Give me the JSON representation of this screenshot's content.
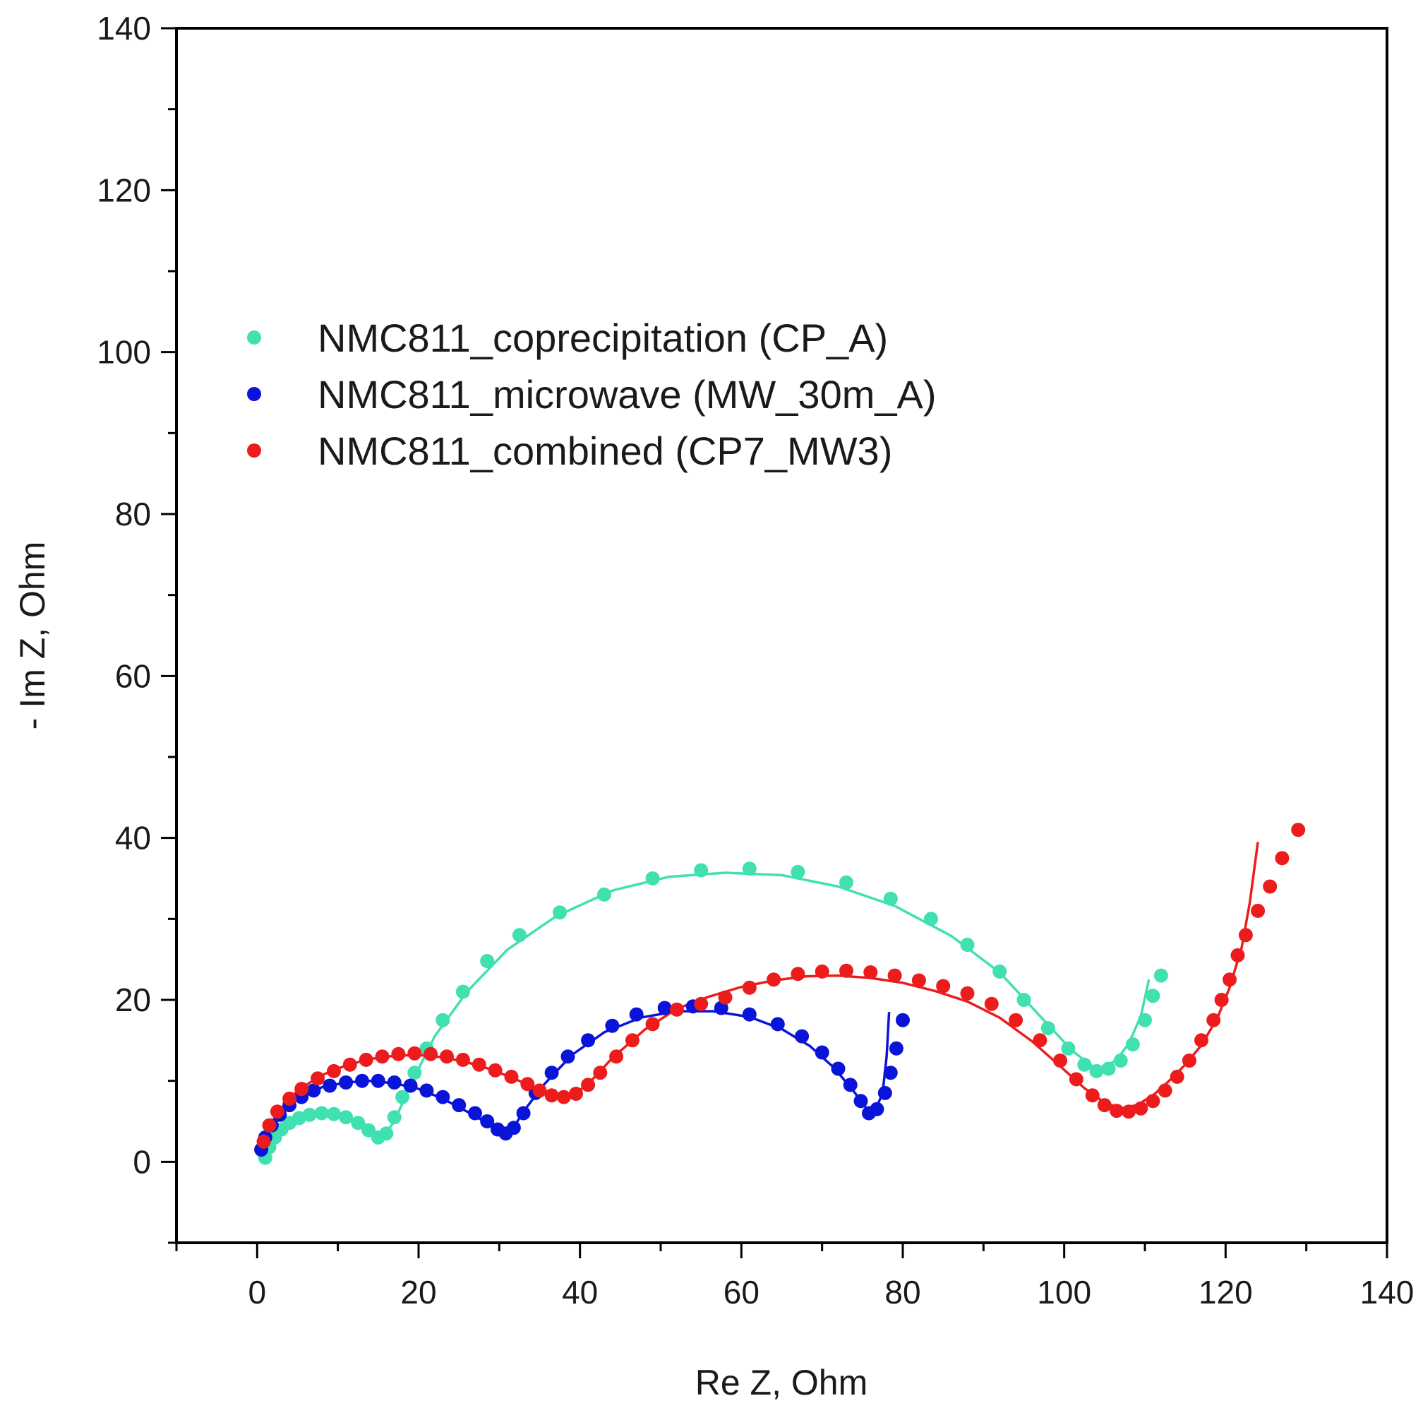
{
  "chart_data": {
    "type": "scatter",
    "title": "",
    "xlabel": "Re Z, Ohm",
    "ylabel": "- Im Z, Ohm",
    "xlim": [
      -10,
      140
    ],
    "ylim": [
      -10,
      140
    ],
    "xticks": [
      0,
      20,
      40,
      60,
      80,
      100,
      120,
      140
    ],
    "yticks": [
      0,
      20,
      40,
      60,
      80,
      100,
      120,
      140
    ],
    "legend_position": "upper-left",
    "series": [
      {
        "name": "NMC811_coprecipitation (CP_A)",
        "color": "#40e0b0",
        "marker": "circle",
        "points": [
          [
            1.0,
            0.5
          ],
          [
            1.5,
            1.8
          ],
          [
            2.2,
            3.0
          ],
          [
            3.0,
            4.0
          ],
          [
            4.0,
            4.8
          ],
          [
            5.2,
            5.4
          ],
          [
            6.5,
            5.8
          ],
          [
            8.0,
            6.0
          ],
          [
            9.5,
            5.9
          ],
          [
            11.0,
            5.5
          ],
          [
            12.5,
            4.8
          ],
          [
            13.8,
            3.9
          ],
          [
            15.0,
            3.0
          ],
          [
            16.0,
            3.5
          ],
          [
            17.0,
            5.5
          ],
          [
            18.0,
            8.0
          ],
          [
            19.5,
            11.0
          ],
          [
            21.0,
            14.0
          ],
          [
            23.0,
            17.5
          ],
          [
            25.5,
            21.0
          ],
          [
            28.5,
            24.8
          ],
          [
            32.5,
            28.0
          ],
          [
            37.5,
            30.8
          ],
          [
            43.0,
            33.0
          ],
          [
            49.0,
            35.0
          ],
          [
            55.0,
            36.0
          ],
          [
            61.0,
            36.2
          ],
          [
            67.0,
            35.8
          ],
          [
            73.0,
            34.5
          ],
          [
            78.5,
            32.5
          ],
          [
            83.5,
            30.0
          ],
          [
            88.0,
            26.8
          ],
          [
            92.0,
            23.5
          ],
          [
            95.0,
            20.0
          ],
          [
            98.0,
            16.5
          ],
          [
            100.5,
            14.0
          ],
          [
            102.5,
            12.0
          ],
          [
            104.0,
            11.2
          ],
          [
            105.5,
            11.5
          ],
          [
            107.0,
            12.5
          ],
          [
            108.5,
            14.5
          ],
          [
            110.0,
            17.5
          ],
          [
            111.0,
            20.5
          ],
          [
            112.0,
            23.0
          ]
        ],
        "fit": [
          [
            1.0,
            0.5
          ],
          [
            3.0,
            4.0
          ],
          [
            6.0,
            5.7
          ],
          [
            9.0,
            5.9
          ],
          [
            12.0,
            5.1
          ],
          [
            14.5,
            3.5
          ],
          [
            15.5,
            2.9
          ],
          [
            17.0,
            5.0
          ],
          [
            19.0,
            9.5
          ],
          [
            22.0,
            15.5
          ],
          [
            26.0,
            21.0
          ],
          [
            31.0,
            26.2
          ],
          [
            37.0,
            30.3
          ],
          [
            44.0,
            33.5
          ],
          [
            51.0,
            35.2
          ],
          [
            58.0,
            35.7
          ],
          [
            65.0,
            35.4
          ],
          [
            72.0,
            34.0
          ],
          [
            79.0,
            31.6
          ],
          [
            86.0,
            27.9
          ],
          [
            92.0,
            23.4
          ],
          [
            97.0,
            18.0
          ],
          [
            101.0,
            13.7
          ],
          [
            103.5,
            11.8
          ],
          [
            105.0,
            11.7
          ],
          [
            106.5,
            12.6
          ],
          [
            108.0,
            14.6
          ],
          [
            109.5,
            18.0
          ],
          [
            110.5,
            22.5
          ]
        ]
      },
      {
        "name": "NMC811_microwave (MW_30m_A)",
        "color": "#0a14d8",
        "marker": "circle",
        "points": [
          [
            0.5,
            1.5
          ],
          [
            1.0,
            3.0
          ],
          [
            1.8,
            4.5
          ],
          [
            2.8,
            5.8
          ],
          [
            4.0,
            7.0
          ],
          [
            5.5,
            8.0
          ],
          [
            7.0,
            8.8
          ],
          [
            9.0,
            9.4
          ],
          [
            11.0,
            9.8
          ],
          [
            13.0,
            10.0
          ],
          [
            15.0,
            10.0
          ],
          [
            17.0,
            9.8
          ],
          [
            19.0,
            9.4
          ],
          [
            21.0,
            8.8
          ],
          [
            23.0,
            8.0
          ],
          [
            25.0,
            7.0
          ],
          [
            27.0,
            6.0
          ],
          [
            28.5,
            5.0
          ],
          [
            29.8,
            4.0
          ],
          [
            30.8,
            3.5
          ],
          [
            31.8,
            4.2
          ],
          [
            33.0,
            6.0
          ],
          [
            34.5,
            8.5
          ],
          [
            36.5,
            11.0
          ],
          [
            38.5,
            13.0
          ],
          [
            41.0,
            15.0
          ],
          [
            44.0,
            16.8
          ],
          [
            47.0,
            18.2
          ],
          [
            50.5,
            19.0
          ],
          [
            54.0,
            19.2
          ],
          [
            57.5,
            19.0
          ],
          [
            61.0,
            18.2
          ],
          [
            64.5,
            17.0
          ],
          [
            67.5,
            15.5
          ],
          [
            70.0,
            13.5
          ],
          [
            72.0,
            11.5
          ],
          [
            73.5,
            9.5
          ],
          [
            74.8,
            7.5
          ],
          [
            75.8,
            6.0
          ],
          [
            76.8,
            6.5
          ],
          [
            77.8,
            8.5
          ],
          [
            78.5,
            11.0
          ],
          [
            79.2,
            14.0
          ],
          [
            80.0,
            17.5
          ]
        ],
        "fit": [
          [
            0.5,
            1.5
          ],
          [
            2.5,
            5.5
          ],
          [
            5.0,
            7.8
          ],
          [
            8.0,
            9.2
          ],
          [
            11.0,
            9.8
          ],
          [
            14.0,
            10.0
          ],
          [
            17.0,
            9.7
          ],
          [
            20.0,
            9.0
          ],
          [
            23.0,
            7.8
          ],
          [
            26.0,
            6.2
          ],
          [
            28.5,
            4.8
          ],
          [
            30.5,
            3.6
          ],
          [
            31.5,
            3.8
          ],
          [
            33.0,
            6.2
          ],
          [
            35.5,
            9.5
          ],
          [
            39.0,
            13.2
          ],
          [
            43.0,
            16.0
          ],
          [
            47.5,
            17.8
          ],
          [
            52.0,
            18.6
          ],
          [
            56.5,
            18.6
          ],
          [
            61.0,
            17.9
          ],
          [
            65.0,
            16.4
          ],
          [
            68.5,
            14.3
          ],
          [
            71.5,
            11.6
          ],
          [
            74.0,
            8.6
          ],
          [
            75.5,
            6.6
          ],
          [
            76.5,
            6.1
          ],
          [
            77.5,
            8.5
          ],
          [
            78.0,
            13.0
          ],
          [
            78.3,
            18.5
          ]
        ]
      },
      {
        "name": "NMC811_combined (CP7_MW3)",
        "color": "#ec1c1c",
        "marker": "circle",
        "points": [
          [
            0.8,
            2.5
          ],
          [
            1.5,
            4.5
          ],
          [
            2.5,
            6.2
          ],
          [
            4.0,
            7.8
          ],
          [
            5.5,
            9.0
          ],
          [
            7.5,
            10.3
          ],
          [
            9.5,
            11.2
          ],
          [
            11.5,
            12.0
          ],
          [
            13.5,
            12.6
          ],
          [
            15.5,
            13.0
          ],
          [
            17.5,
            13.3
          ],
          [
            19.5,
            13.4
          ],
          [
            21.5,
            13.3
          ],
          [
            23.5,
            13.0
          ],
          [
            25.5,
            12.6
          ],
          [
            27.5,
            12.0
          ],
          [
            29.5,
            11.3
          ],
          [
            31.5,
            10.5
          ],
          [
            33.5,
            9.6
          ],
          [
            35.0,
            8.8
          ],
          [
            36.5,
            8.2
          ],
          [
            38.0,
            8.0
          ],
          [
            39.5,
            8.4
          ],
          [
            41.0,
            9.5
          ],
          [
            42.5,
            11.0
          ],
          [
            44.5,
            13.0
          ],
          [
            46.5,
            15.0
          ],
          [
            49.0,
            17.0
          ],
          [
            52.0,
            18.8
          ],
          [
            55.0,
            19.5
          ],
          [
            58.0,
            20.3
          ],
          [
            61.0,
            21.5
          ],
          [
            64.0,
            22.5
          ],
          [
            67.0,
            23.2
          ],
          [
            70.0,
            23.5
          ],
          [
            73.0,
            23.6
          ],
          [
            76.0,
            23.4
          ],
          [
            79.0,
            23.0
          ],
          [
            82.0,
            22.4
          ],
          [
            85.0,
            21.7
          ],
          [
            88.0,
            20.8
          ],
          [
            91.0,
            19.5
          ],
          [
            94.0,
            17.5
          ],
          [
            97.0,
            15.0
          ],
          [
            99.5,
            12.5
          ],
          [
            101.5,
            10.2
          ],
          [
            103.5,
            8.2
          ],
          [
            105.0,
            7.0
          ],
          [
            106.5,
            6.3
          ],
          [
            108.0,
            6.2
          ],
          [
            109.5,
            6.6
          ],
          [
            111.0,
            7.5
          ],
          [
            112.5,
            8.8
          ],
          [
            114.0,
            10.5
          ],
          [
            115.5,
            12.5
          ],
          [
            117.0,
            15.0
          ],
          [
            118.5,
            17.5
          ],
          [
            119.5,
            20.0
          ],
          [
            120.5,
            22.5
          ],
          [
            121.5,
            25.5
          ],
          [
            122.5,
            28.0
          ],
          [
            124.0,
            31.0
          ],
          [
            125.5,
            34.0
          ],
          [
            127.0,
            37.5
          ],
          [
            129.0,
            41.0
          ]
        ],
        "fit": [
          [
            0.8,
            2.5
          ],
          [
            2.5,
            6.0
          ],
          [
            5.0,
            8.8
          ],
          [
            8.0,
            10.7
          ],
          [
            11.0,
            11.9
          ],
          [
            14.0,
            12.7
          ],
          [
            17.0,
            13.1
          ],
          [
            20.0,
            13.2
          ],
          [
            23.0,
            12.9
          ],
          [
            26.0,
            12.3
          ],
          [
            29.0,
            11.4
          ],
          [
            32.0,
            10.2
          ],
          [
            35.0,
            8.9
          ],
          [
            37.5,
            8.0
          ],
          [
            39.0,
            8.1
          ],
          [
            41.0,
            9.6
          ],
          [
            44.0,
            12.8
          ],
          [
            48.0,
            16.3
          ],
          [
            52.0,
            18.9
          ],
          [
            56.0,
            20.4
          ],
          [
            60.0,
            21.6
          ],
          [
            64.0,
            22.4
          ],
          [
            68.0,
            22.9
          ],
          [
            72.0,
            23.0
          ],
          [
            76.0,
            22.7
          ],
          [
            80.0,
            22.1
          ],
          [
            84.0,
            21.1
          ],
          [
            88.0,
            19.8
          ],
          [
            92.0,
            17.8
          ],
          [
            96.0,
            14.9
          ],
          [
            99.5,
            11.8
          ],
          [
            102.5,
            9.1
          ],
          [
            105.0,
            7.3
          ],
          [
            107.0,
            6.6
          ],
          [
            109.0,
            7.0
          ],
          [
            111.0,
            8.2
          ],
          [
            113.0,
            10.0
          ],
          [
            115.0,
            12.0
          ],
          [
            117.0,
            14.4
          ],
          [
            119.0,
            17.8
          ],
          [
            120.5,
            21.5
          ],
          [
            122.0,
            26.5
          ],
          [
            123.0,
            32.0
          ],
          [
            124.0,
            39.5
          ]
        ]
      }
    ]
  }
}
